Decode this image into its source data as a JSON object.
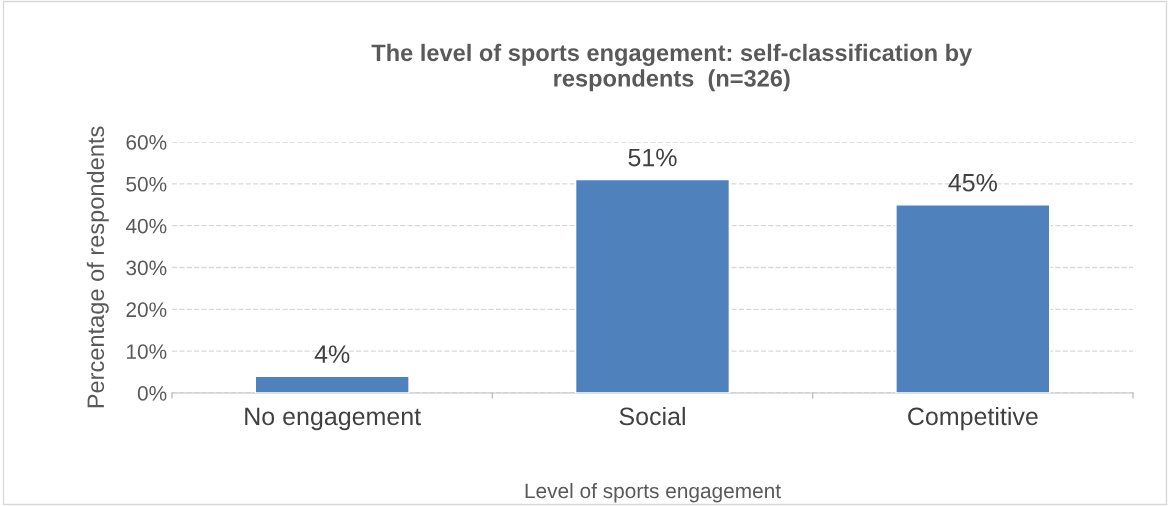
{
  "chart_data": {
    "type": "bar",
    "title": "The level of sports engagement: self-classification by\nrespondents  (n=326)",
    "xlabel": "Level of sports engagement",
    "ylabel": "Percentage of respondents",
    "categories": [
      "No engagement",
      "Social",
      "Competitive"
    ],
    "values": [
      4,
      51,
      45
    ],
    "color": "#4f81bd",
    "data_labels": true,
    "value_labels": [
      "4%",
      "51%",
      "45%"
    ],
    "ylim": [
      0,
      60
    ],
    "yticks": [
      {
        "value": 0,
        "label": "0%"
      },
      {
        "value": 10,
        "label": "10%"
      },
      {
        "value": 20,
        "label": "20%"
      },
      {
        "value": 30,
        "label": "30%"
      },
      {
        "value": 40,
        "label": "40%"
      },
      {
        "value": 50,
        "label": "50%"
      },
      {
        "value": 60,
        "label": "60%"
      }
    ],
    "grid": "y",
    "legend": false
  }
}
